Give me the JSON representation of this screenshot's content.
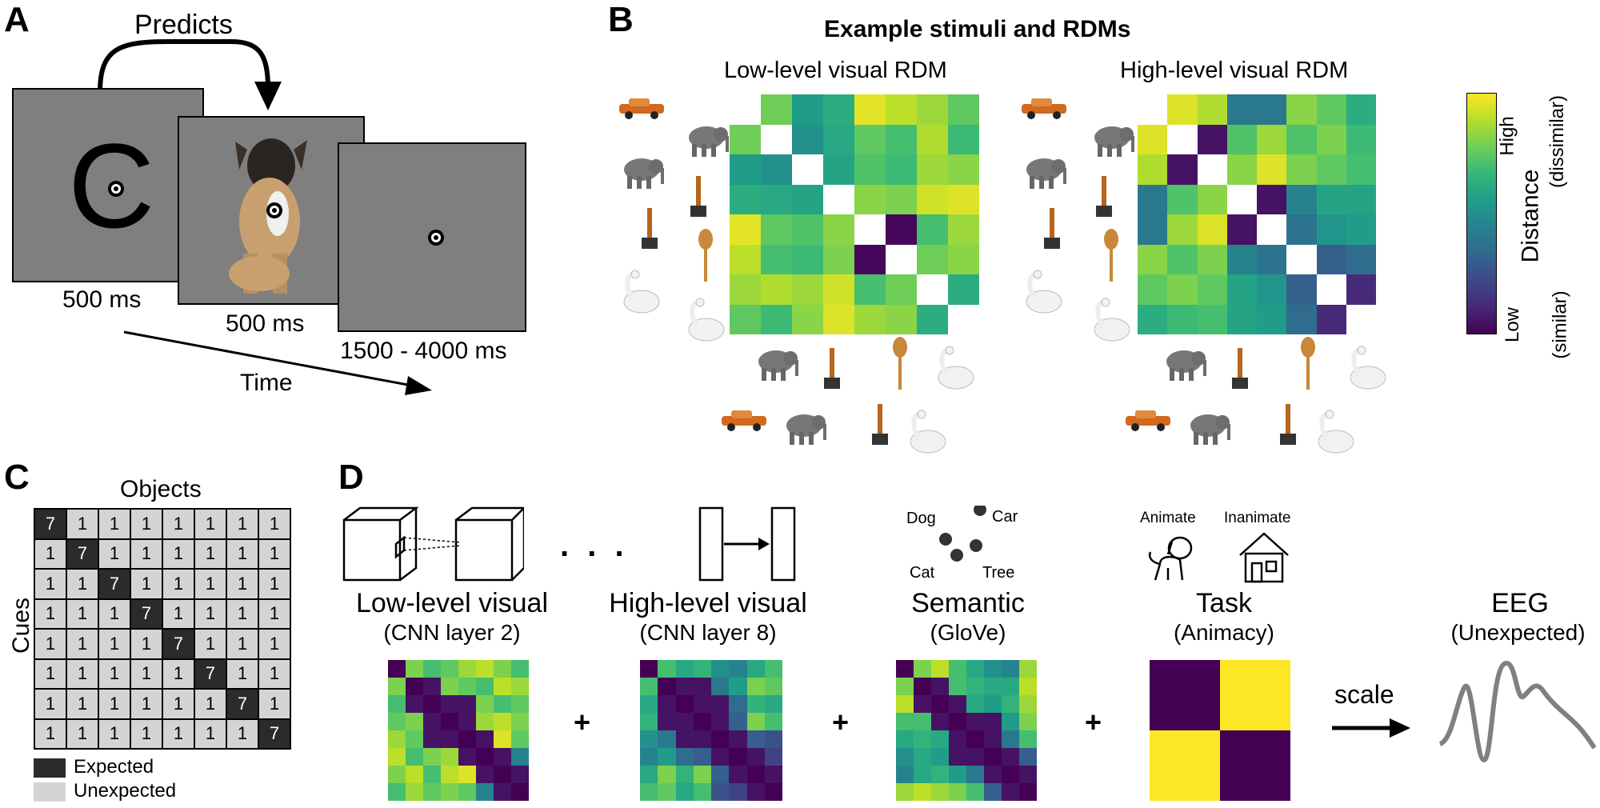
{
  "panelA": {
    "letter": "A",
    "arrow_label": "Predicts",
    "cue_letter": "C",
    "cue_duration": "500 ms",
    "object_duration": "500 ms",
    "iti_duration": "1500 - 4000 ms",
    "time_label": "Time"
  },
  "panelB": {
    "letter": "B",
    "title": "Example stimuli and RDMs",
    "low_title": "Low-level visual RDM",
    "high_title": "High-level visual RDM",
    "colorbar": {
      "high": "High",
      "high_sub": "(dissimilar)",
      "mid": "Distance",
      "low": "Low",
      "low_sub": "(similar)"
    },
    "stimuli": [
      "car-icon",
      "elephant-icon",
      "elephant-icon",
      "hammer-icon",
      "hammer-icon",
      "spoon-icon",
      "swan-icon",
      "swan-icon"
    ],
    "low_rdm": [
      [
        0,
        0.78,
        0.55,
        0.62,
        0.96,
        0.9,
        0.85,
        0.75
      ],
      [
        0.78,
        0,
        0.5,
        0.6,
        0.75,
        0.7,
        0.88,
        0.68
      ],
      [
        0.55,
        0.5,
        0,
        0.58,
        0.72,
        0.68,
        0.85,
        0.82
      ],
      [
        0.62,
        0.6,
        0.58,
        0,
        0.82,
        0.8,
        0.93,
        0.95
      ],
      [
        0.96,
        0.75,
        0.72,
        0.82,
        0,
        0.02,
        0.7,
        0.85
      ],
      [
        0.9,
        0.7,
        0.68,
        0.8,
        0.02,
        0,
        0.78,
        0.82
      ],
      [
        0.85,
        0.88,
        0.85,
        0.93,
        0.7,
        0.78,
        0,
        0.62
      ],
      [
        0.75,
        0.68,
        0.82,
        0.95,
        0.85,
        0.82,
        0.62,
        0
      ]
    ],
    "high_rdm": [
      [
        0,
        0.95,
        0.88,
        0.4,
        0.4,
        0.82,
        0.75,
        0.62
      ],
      [
        0.95,
        0,
        0.05,
        0.72,
        0.85,
        0.72,
        0.8,
        0.68
      ],
      [
        0.88,
        0.05,
        0,
        0.82,
        0.95,
        0.8,
        0.75,
        0.7
      ],
      [
        0.4,
        0.72,
        0.82,
        0,
        0.05,
        0.45,
        0.58,
        0.58
      ],
      [
        0.4,
        0.85,
        0.95,
        0.05,
        0,
        0.38,
        0.52,
        0.55
      ],
      [
        0.82,
        0.72,
        0.8,
        0.45,
        0.38,
        0,
        0.3,
        0.35
      ],
      [
        0.75,
        0.8,
        0.75,
        0.58,
        0.52,
        0.3,
        0,
        0.12
      ],
      [
        0.62,
        0.68,
        0.7,
        0.58,
        0.55,
        0.35,
        0.12,
        0
      ]
    ]
  },
  "panelC": {
    "letter": "C",
    "objects_label": "Objects",
    "cues_label": "Cues",
    "diag_value": "7",
    "off_value": "1",
    "legend_expected": "Expected",
    "legend_unexpected": "Unexpected"
  },
  "panelD": {
    "letter": "D",
    "ellipsis": ". . .",
    "models": [
      {
        "title": "Low-level visual",
        "sub": "(CNN layer 2)"
      },
      {
        "title": "High-level visual",
        "sub": "(CNN layer 8)"
      },
      {
        "title": "Semantic",
        "sub": "(GloVe)"
      },
      {
        "title": "Task",
        "sub": "(Animacy)"
      }
    ],
    "semantic_words": [
      "Dog",
      "Car",
      "Cat",
      "Tree"
    ],
    "task_labels": [
      "Animate",
      "Inanimate"
    ],
    "plus": "+",
    "scale_label": "scale",
    "eeg_title": "EEG",
    "eeg_sub": "(Unexpected)",
    "d_low": [
      [
        0,
        0.8,
        0.7,
        0.75,
        0.85,
        0.9,
        0.8,
        0.7
      ],
      [
        0.8,
        0,
        0.05,
        0.8,
        0.75,
        0.7,
        0.9,
        0.85
      ],
      [
        0.7,
        0.05,
        0,
        0.05,
        0.05,
        0.8,
        0.7,
        0.75
      ],
      [
        0.75,
        0.8,
        0.05,
        0,
        0.05,
        0.85,
        0.9,
        0.8
      ],
      [
        0.85,
        0.75,
        0.05,
        0.05,
        0,
        0.05,
        0.95,
        0.75
      ],
      [
        0.9,
        0.7,
        0.8,
        0.85,
        0.05,
        0,
        0.05,
        0.45
      ],
      [
        0.8,
        0.9,
        0.7,
        0.9,
        0.95,
        0.05,
        0,
        0.05
      ],
      [
        0.7,
        0.85,
        0.75,
        0.8,
        0.75,
        0.45,
        0.05,
        0
      ]
    ],
    "d_high": [
      [
        0,
        0.7,
        0.6,
        0.65,
        0.5,
        0.45,
        0.6,
        0.7
      ],
      [
        0.7,
        0,
        0.05,
        0.05,
        0.4,
        0.55,
        0.8,
        0.75
      ],
      [
        0.6,
        0.05,
        0,
        0.05,
        0.05,
        0.35,
        0.65,
        0.6
      ],
      [
        0.65,
        0.05,
        0.05,
        0,
        0.05,
        0.3,
        0.8,
        0.7
      ],
      [
        0.5,
        0.4,
        0.05,
        0.05,
        0,
        0.05,
        0.3,
        0.25
      ],
      [
        0.45,
        0.55,
        0.35,
        0.3,
        0.05,
        0,
        0.05,
        0.2
      ],
      [
        0.6,
        0.8,
        0.65,
        0.8,
        0.3,
        0.05,
        0,
        0.05
      ],
      [
        0.7,
        0.75,
        0.6,
        0.7,
        0.25,
        0.2,
        0.05,
        0
      ]
    ],
    "d_sem": [
      [
        0,
        0.8,
        0.9,
        0.7,
        0.6,
        0.5,
        0.45,
        0.85
      ],
      [
        0.8,
        0,
        0.05,
        0.7,
        0.65,
        0.6,
        0.6,
        0.9
      ],
      [
        0.9,
        0.05,
        0,
        0.05,
        0.6,
        0.55,
        0.65,
        0.85
      ],
      [
        0.7,
        0.7,
        0.05,
        0,
        0.05,
        0.05,
        0.55,
        0.8
      ],
      [
        0.6,
        0.65,
        0.6,
        0.05,
        0,
        0.05,
        0.4,
        0.7
      ],
      [
        0.5,
        0.6,
        0.55,
        0.05,
        0.05,
        0,
        0.05,
        0.3
      ],
      [
        0.45,
        0.6,
        0.65,
        0.55,
        0.4,
        0.05,
        0,
        0.05
      ],
      [
        0.85,
        0.9,
        0.85,
        0.8,
        0.7,
        0.3,
        0.05,
        0
      ]
    ]
  },
  "colors": {
    "screen": "#7f7f7f",
    "expected": "#2b2b2b",
    "unexpected": "#d4d4d4",
    "viridis_low": "#440154",
    "viridis_high": "#fde725"
  }
}
